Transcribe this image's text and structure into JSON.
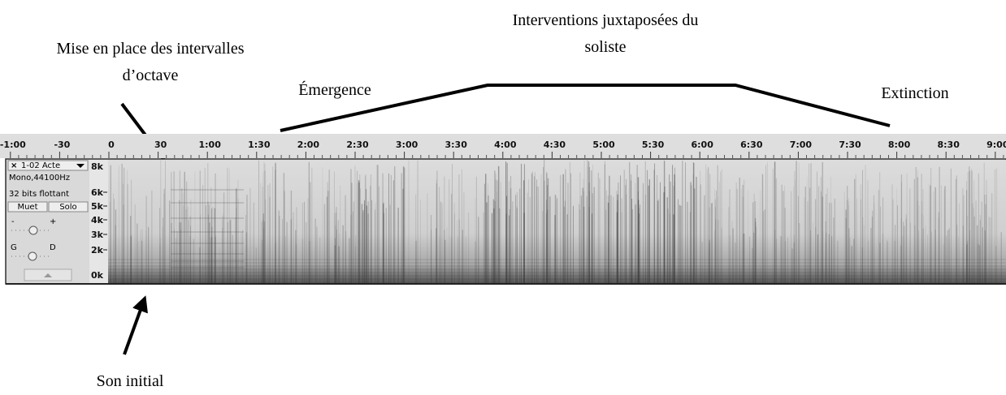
{
  "annotations": {
    "octave": [
      "Mise en place des intervalles",
      "d’octave"
    ],
    "soliste": [
      "Interventions juxtaposées du",
      "soliste"
    ],
    "emergence": "Émergence",
    "extinction": "Extinction",
    "son_initial": "Son initial"
  },
  "timeline": {
    "labels": [
      "-1:00",
      "-30",
      "0",
      "30",
      "1:00",
      "1:30",
      "2:00",
      "2:30",
      "3:00",
      "3:30",
      "4:00",
      "4:30",
      "5:00",
      "5:30",
      "6:00",
      "6:30",
      "7:00",
      "7:30",
      "8:00",
      "8:30",
      "9:00"
    ]
  },
  "track": {
    "name": "1-02 Acte",
    "format": "Mono,44100Hz",
    "sample": "32 bits flottant",
    "mute": "Muet",
    "solo": "Solo",
    "gain_minus": "-",
    "gain_plus": "+",
    "pan_left": "G",
    "pan_right": "D"
  },
  "frequency_scale": [
    "8k",
    "6k",
    "5k",
    "4k",
    "3k",
    "2k",
    "0k"
  ]
}
